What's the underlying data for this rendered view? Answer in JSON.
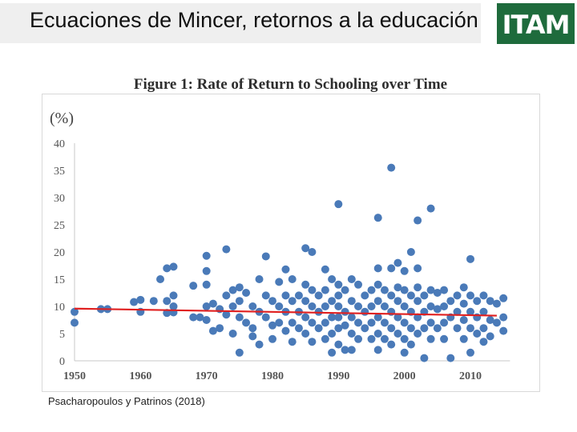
{
  "slide": {
    "title": "Ecuaciones de Mincer, retornos a la educación",
    "logo_text": "ITAM",
    "source": "Psacharopoulos y Patrinos (2018)"
  },
  "colors": {
    "points": "#4a7ab8",
    "trend": "#e02020",
    "logo_bg": "#1e6b3c"
  },
  "chart_data": {
    "type": "scatter",
    "title": "Figure 1: Rate of Return to Schooling over Time",
    "ylabel": "(%)",
    "xlabel": "",
    "xlim": [
      1950,
      2016
    ],
    "ylim": [
      0,
      40
    ],
    "xticks": [
      1950,
      1960,
      1970,
      1980,
      1990,
      2000,
      2010
    ],
    "yticks": [
      0,
      5,
      10,
      15,
      20,
      25,
      30,
      35,
      40
    ],
    "grid": false,
    "trend_line": {
      "x": [
        1950,
        2014
      ],
      "y": [
        9.6,
        8.3
      ]
    },
    "series": [
      {
        "points": [
          [
            1950,
            9.0
          ],
          [
            1950,
            7.0
          ],
          [
            1954,
            9.5
          ],
          [
            1955,
            9.5
          ],
          [
            1959,
            10.8
          ],
          [
            1960,
            9.0
          ],
          [
            1960,
            11.2
          ],
          [
            1962,
            11.0
          ],
          [
            1963,
            15.0
          ],
          [
            1964,
            17.0
          ],
          [
            1964,
            11.0
          ],
          [
            1964,
            8.8
          ],
          [
            1965,
            12.0
          ],
          [
            1965,
            8.9
          ],
          [
            1965,
            17.3
          ],
          [
            1965,
            10.0
          ],
          [
            1968,
            13.8
          ],
          [
            1968,
            8.0
          ],
          [
            1969,
            8.0
          ],
          [
            1970,
            19.3
          ],
          [
            1970,
            16.5
          ],
          [
            1970,
            14.0
          ],
          [
            1970,
            10.0
          ],
          [
            1970,
            7.5
          ],
          [
            1971,
            10.5
          ],
          [
            1971,
            5.5
          ],
          [
            1972,
            9.5
          ],
          [
            1972,
            6.0
          ],
          [
            1973,
            20.5
          ],
          [
            1973,
            12.0
          ],
          [
            1973,
            8.5
          ],
          [
            1974,
            13.0
          ],
          [
            1974,
            10.0
          ],
          [
            1974,
            5.0
          ],
          [
            1975,
            13.5
          ],
          [
            1975,
            11.0
          ],
          [
            1975,
            8.0
          ],
          [
            1975,
            1.5
          ],
          [
            1976,
            12.5
          ],
          [
            1976,
            7.0
          ],
          [
            1977,
            10.0
          ],
          [
            1977,
            6.0
          ],
          [
            1977,
            4.5
          ],
          [
            1978,
            15.0
          ],
          [
            1978,
            9.0
          ],
          [
            1978,
            3.0
          ],
          [
            1979,
            19.2
          ],
          [
            1979,
            12.0
          ],
          [
            1979,
            8.0
          ],
          [
            1980,
            11.0
          ],
          [
            1980,
            6.5
          ],
          [
            1980,
            4.0
          ],
          [
            1981,
            14.5
          ],
          [
            1981,
            10.0
          ],
          [
            1981,
            7.0
          ],
          [
            1982,
            16.8
          ],
          [
            1982,
            12.0
          ],
          [
            1982,
            9.0
          ],
          [
            1982,
            5.5
          ],
          [
            1983,
            15.0
          ],
          [
            1983,
            11.0
          ],
          [
            1983,
            7.0
          ],
          [
            1983,
            3.5
          ],
          [
            1984,
            12.0
          ],
          [
            1984,
            9.0
          ],
          [
            1984,
            6.0
          ],
          [
            1985,
            20.7
          ],
          [
            1985,
            14.0
          ],
          [
            1985,
            11.0
          ],
          [
            1985,
            8.0
          ],
          [
            1985,
            5.0
          ],
          [
            1986,
            20.0
          ],
          [
            1986,
            13.0
          ],
          [
            1986,
            10.0
          ],
          [
            1986,
            7.0
          ],
          [
            1986,
            3.5
          ],
          [
            1987,
            12.0
          ],
          [
            1987,
            9.0
          ],
          [
            1987,
            6.0
          ],
          [
            1988,
            16.8
          ],
          [
            1988,
            13.0
          ],
          [
            1988,
            10.0
          ],
          [
            1988,
            7.0
          ],
          [
            1988,
            4.0
          ],
          [
            1989,
            15.0
          ],
          [
            1989,
            11.0
          ],
          [
            1989,
            8.0
          ],
          [
            1989,
            5.0
          ],
          [
            1989,
            1.5
          ],
          [
            1990,
            28.8
          ],
          [
            1990,
            14.0
          ],
          [
            1990,
            12.0
          ],
          [
            1990,
            10.0
          ],
          [
            1990,
            8.0
          ],
          [
            1990,
            6.0
          ],
          [
            1990,
            3.0
          ],
          [
            1991,
            13.0
          ],
          [
            1991,
            9.0
          ],
          [
            1991,
            6.5
          ],
          [
            1991,
            2.0
          ],
          [
            1992,
            15.0
          ],
          [
            1992,
            11.0
          ],
          [
            1992,
            8.0
          ],
          [
            1992,
            5.0
          ],
          [
            1992,
            2.0
          ],
          [
            1993,
            14.0
          ],
          [
            1993,
            10.0
          ],
          [
            1993,
            7.0
          ],
          [
            1993,
            4.0
          ],
          [
            1994,
            12.0
          ],
          [
            1994,
            9.0
          ],
          [
            1994,
            6.0
          ],
          [
            1995,
            13.0
          ],
          [
            1995,
            10.0
          ],
          [
            1995,
            7.0
          ],
          [
            1995,
            4.0
          ],
          [
            1996,
            17.0
          ],
          [
            1996,
            26.3
          ],
          [
            1996,
            14.0
          ],
          [
            1996,
            11.0
          ],
          [
            1996,
            8.0
          ],
          [
            1996,
            5.0
          ],
          [
            1996,
            2.0
          ],
          [
            1997,
            13.0
          ],
          [
            1997,
            10.0
          ],
          [
            1997,
            7.0
          ],
          [
            1997,
            4.0
          ],
          [
            1998,
            35.5
          ],
          [
            1998,
            17.0
          ],
          [
            1998,
            12.0
          ],
          [
            1998,
            9.0
          ],
          [
            1998,
            6.0
          ],
          [
            1998,
            3.0
          ],
          [
            1999,
            18.0
          ],
          [
            1999,
            13.5
          ],
          [
            1999,
            11.0
          ],
          [
            1999,
            8.0
          ],
          [
            1999,
            5.0
          ],
          [
            2000,
            16.5
          ],
          [
            2000,
            13.0
          ],
          [
            2000,
            10.0
          ],
          [
            2000,
            7.0
          ],
          [
            2000,
            4.0
          ],
          [
            2000,
            1.5
          ],
          [
            2001,
            20.0
          ],
          [
            2001,
            12.0
          ],
          [
            2001,
            9.0
          ],
          [
            2001,
            6.0
          ],
          [
            2001,
            3.0
          ],
          [
            2002,
            25.8
          ],
          [
            2002,
            17.0
          ],
          [
            2002,
            13.5
          ],
          [
            2002,
            11.0
          ],
          [
            2002,
            8.0
          ],
          [
            2002,
            5.0
          ],
          [
            2003,
            12.0
          ],
          [
            2003,
            9.0
          ],
          [
            2003,
            6.0
          ],
          [
            2003,
            0.5
          ],
          [
            2004,
            28.0
          ],
          [
            2004,
            13.0
          ],
          [
            2004,
            10.0
          ],
          [
            2004,
            7.0
          ],
          [
            2004,
            4.0
          ],
          [
            2005,
            12.5
          ],
          [
            2005,
            9.5
          ],
          [
            2005,
            6.0
          ],
          [
            2006,
            13.0
          ],
          [
            2006,
            10.0
          ],
          [
            2006,
            7.0
          ],
          [
            2006,
            4.0
          ],
          [
            2007,
            11.0
          ],
          [
            2007,
            8.0
          ],
          [
            2007,
            0.5
          ],
          [
            2008,
            12.0
          ],
          [
            2008,
            9.0
          ],
          [
            2008,
            6.0
          ],
          [
            2009,
            13.5
          ],
          [
            2009,
            10.5
          ],
          [
            2009,
            7.5
          ],
          [
            2009,
            4.0
          ],
          [
            2010,
            18.7
          ],
          [
            2010,
            12.0
          ],
          [
            2010,
            9.0
          ],
          [
            2010,
            6.0
          ],
          [
            2010,
            1.5
          ],
          [
            2011,
            11.0
          ],
          [
            2011,
            8.0
          ],
          [
            2011,
            5.0
          ],
          [
            2012,
            12.0
          ],
          [
            2012,
            9.0
          ],
          [
            2012,
            6.0
          ],
          [
            2012,
            3.5
          ],
          [
            2013,
            11.0
          ],
          [
            2013,
            7.5
          ],
          [
            2013,
            4.5
          ],
          [
            2014,
            10.5
          ],
          [
            2014,
            7.0
          ],
          [
            2015,
            11.5
          ],
          [
            2015,
            8.0
          ],
          [
            2015,
            5.5
          ]
        ]
      }
    ]
  }
}
